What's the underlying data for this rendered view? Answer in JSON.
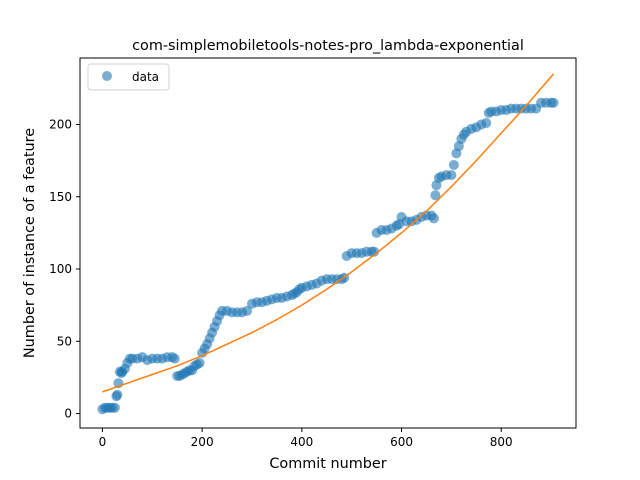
{
  "chart_data": {
    "type": "scatter",
    "title": "com-simplemobiletools-notes-pro_lambda-exponential",
    "xlabel": "Commit number",
    "ylabel": "Number of instance of a feature",
    "xlim": [
      -45,
      950
    ],
    "ylim": [
      -10,
      246
    ],
    "xticks": [
      0,
      200,
      400,
      600,
      800
    ],
    "yticks": [
      0,
      50,
      100,
      150,
      200
    ],
    "grid": false,
    "legend_position": "upper left",
    "colors": {
      "data": "#1f77b4",
      "fit": "#ff7f0e"
    },
    "series": [
      {
        "name": "data",
        "kind": "scatter",
        "x": [
          0,
          5,
          10,
          15,
          20,
          25,
          28,
          30,
          32,
          35,
          38,
          40,
          45,
          50,
          55,
          60,
          70,
          80,
          90,
          100,
          110,
          120,
          130,
          140,
          145,
          150,
          155,
          160,
          165,
          170,
          175,
          180,
          185,
          190,
          195,
          200,
          205,
          210,
          215,
          220,
          225,
          230,
          235,
          240,
          250,
          260,
          270,
          280,
          290,
          300,
          310,
          320,
          330,
          340,
          350,
          360,
          370,
          380,
          385,
          390,
          395,
          400,
          410,
          420,
          430,
          440,
          450,
          460,
          470,
          480,
          485,
          490,
          500,
          510,
          520,
          530,
          540,
          545,
          550,
          560,
          570,
          580,
          590,
          595,
          600,
          610,
          620,
          630,
          640,
          650,
          660,
          665,
          668,
          670,
          675,
          680,
          690,
          700,
          705,
          710,
          715,
          720,
          725,
          730,
          740,
          750,
          760,
          770,
          775,
          780,
          790,
          800,
          810,
          820,
          830,
          840,
          850,
          860,
          870,
          880,
          890,
          900,
          905
        ],
        "y": [
          3,
          4,
          4,
          4,
          4,
          4,
          12,
          13,
          21,
          29,
          28,
          29,
          31,
          35,
          38,
          38,
          38,
          39,
          37,
          38,
          38,
          38,
          39,
          39,
          38,
          26,
          26,
          27,
          28,
          29,
          30,
          30,
          33,
          34,
          35,
          42,
          45,
          48,
          52,
          56,
          60,
          64,
          68,
          71,
          71,
          70,
          70,
          70,
          71,
          76,
          77,
          77,
          78,
          79,
          80,
          80,
          81,
          82,
          83,
          84,
          86,
          87,
          88,
          89,
          90,
          92,
          93,
          93,
          93,
          93,
          94,
          109,
          111,
          111,
          111,
          112,
          112,
          112,
          125,
          127,
          127,
          128,
          130,
          131,
          136,
          133,
          133,
          134,
          136,
          137,
          137,
          135,
          151,
          158,
          163,
          164,
          165,
          165,
          172,
          180,
          185,
          190,
          193,
          195,
          197,
          198,
          200,
          201,
          208,
          209,
          209,
          210,
          210,
          211,
          211,
          211,
          211,
          211,
          211,
          215,
          215,
          215,
          215
        ]
      },
      {
        "name": "",
        "kind": "line",
        "x": [
          0,
          50,
          100,
          150,
          200,
          250,
          300,
          350,
          400,
          450,
          500,
          550,
          600,
          650,
          700,
          750,
          800,
          850,
          905
        ],
        "y": [
          15,
          21,
          27,
          33,
          40,
          48,
          56,
          65,
          75,
          86,
          98,
          111,
          125,
          140,
          157,
          175,
          194,
          213,
          235
        ]
      }
    ]
  }
}
